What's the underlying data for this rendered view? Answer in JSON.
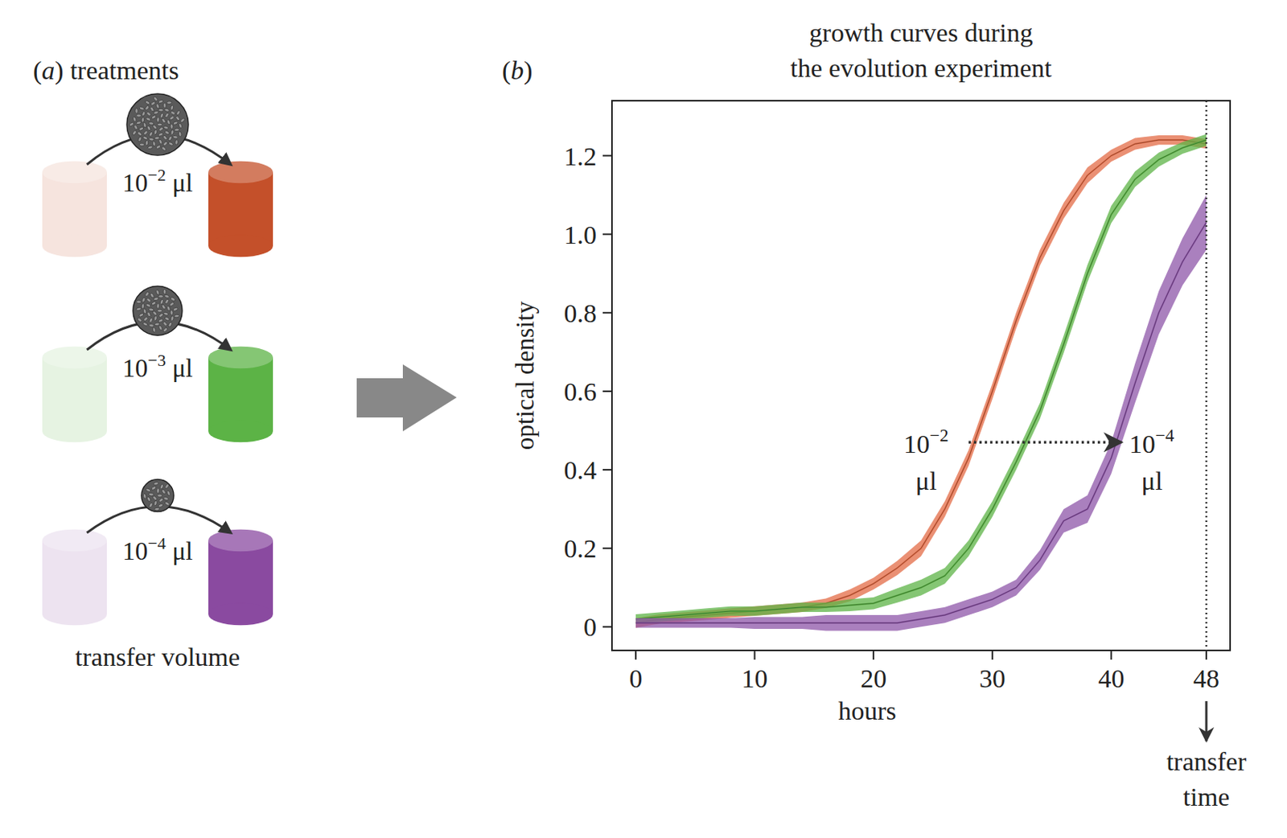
{
  "diagram": {
    "panel": "(a)",
    "title": "treatments",
    "footer": "transfer volume",
    "treatments": [
      {
        "base": "10",
        "exponent": "−2",
        "unit": "μl",
        "color": "#c4502a"
      },
      {
        "base": "10",
        "exponent": "−3",
        "unit": "μl",
        "color": "#5cb346"
      },
      {
        "base": "10",
        "exponent": "−4",
        "unit": "μl",
        "color": "#8a4aa0"
      }
    ]
  },
  "chart_data": {
    "type": "line",
    "panel": "(b)",
    "title": "growth curves during the evolution experiment",
    "x_label": "hours",
    "y_label": "optical density",
    "x": [
      0,
      2,
      4,
      6,
      8,
      10,
      12,
      14,
      16,
      18,
      20,
      22,
      24,
      26,
      28,
      30,
      32,
      34,
      36,
      38,
      40,
      42,
      44,
      46,
      48
    ],
    "xlim": [
      -2,
      50
    ],
    "xticks": [
      0,
      10,
      20,
      30,
      40,
      48
    ],
    "ylim": [
      -0.06,
      1.34
    ],
    "yticks": [
      0,
      0.2,
      0.4,
      0.6,
      0.8,
      {
        "value": 1,
        "label": "1.0"
      },
      1.2
    ],
    "grid": false,
    "series": [
      {
        "color": "#e36b45",
        "values": [
          0.01,
          0.02,
          0.025,
          0.03,
          0.035,
          0.04,
          0.045,
          0.05,
          0.06,
          0.08,
          0.11,
          0.15,
          0.2,
          0.3,
          0.43,
          0.6,
          0.78,
          0.94,
          1.06,
          1.15,
          1.2,
          1.23,
          1.24,
          1.24,
          1.23
        ],
        "errors": [
          0.012,
          0.012,
          0.012,
          0.012,
          0.012,
          0.012,
          0.012,
          0.012,
          0.012,
          0.015,
          0.015,
          0.018,
          0.02,
          0.02,
          0.02,
          0.02,
          0.02,
          0.02,
          0.02,
          0.02,
          0.015,
          0.015,
          0.012,
          0.012,
          0.012
        ]
      },
      {
        "color": "#5cb346",
        "values": [
          0.02,
          0.025,
          0.03,
          0.035,
          0.04,
          0.04,
          0.045,
          0.05,
          0.05,
          0.055,
          0.06,
          0.08,
          0.1,
          0.13,
          0.2,
          0.3,
          0.42,
          0.55,
          0.72,
          0.9,
          1.05,
          1.14,
          1.19,
          1.22,
          1.24
        ],
        "errors": [
          0.012,
          0.012,
          0.012,
          0.012,
          0.012,
          0.012,
          0.012,
          0.012,
          0.012,
          0.015,
          0.015,
          0.018,
          0.02,
          0.02,
          0.02,
          0.02,
          0.02,
          0.02,
          0.022,
          0.022,
          0.022,
          0.02,
          0.018,
          0.015,
          0.015
        ]
      },
      {
        "color": "#8e55a8",
        "values": [
          0.01,
          0.01,
          0.01,
          0.01,
          0.01,
          0.01,
          0.01,
          0.01,
          0.01,
          0.01,
          0.01,
          0.01,
          0.02,
          0.03,
          0.05,
          0.07,
          0.1,
          0.17,
          0.27,
          0.3,
          0.43,
          0.62,
          0.8,
          0.93,
          1.03
        ],
        "errors": [
          0.012,
          0.012,
          0.012,
          0.012,
          0.012,
          0.015,
          0.015,
          0.015,
          0.02,
          0.02,
          0.02,
          0.02,
          0.02,
          0.02,
          0.02,
          0.02,
          0.02,
          0.025,
          0.03,
          0.035,
          0.04,
          0.05,
          0.055,
          0.06,
          0.07
        ]
      }
    ],
    "annotation": {
      "y": 0.47,
      "x_from": 28,
      "x_to": 41,
      "from_label": {
        "base": "10",
        "exponent": "−2",
        "unit": "μl"
      },
      "to_label": {
        "base": "10",
        "exponent": "−4",
        "unit": "μl"
      }
    },
    "transfer": {
      "x": 48,
      "label": "transfer time"
    }
  }
}
